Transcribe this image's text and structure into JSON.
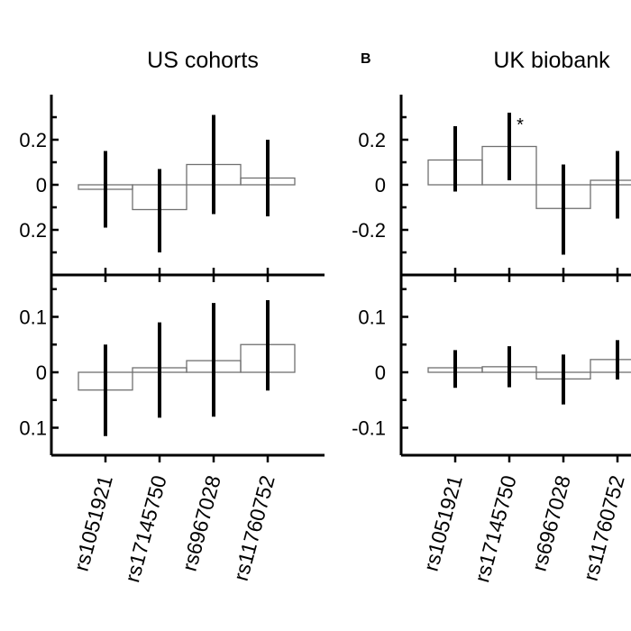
{
  "chart_data": [
    {
      "type": "bar",
      "title": "US cohorts",
      "panel_label": "",
      "categories": [
        "rs1051921",
        "rs17145750",
        "rs6967028",
        "rs11760752"
      ],
      "subplots": [
        {
          "ylim": [
            -0.4,
            0.4
          ],
          "ytick_labels": [
            "0.2",
            "0",
            "0.2"
          ],
          "values": [
            -0.02,
            -0.11,
            0.09,
            0.03
          ],
          "ci_low": [
            -0.19,
            -0.3,
            -0.13,
            -0.14
          ],
          "ci_high": [
            0.15,
            0.07,
            0.31,
            0.2
          ],
          "significance": [
            "",
            "",
            "",
            ""
          ]
        },
        {
          "ylim": [
            -0.15,
            0.165
          ],
          "ytick_labels": [
            "0.1",
            "0",
            "0.1"
          ],
          "values": [
            -0.032,
            0.005,
            0.021,
            0.05
          ],
          "ci_low": [
            -0.115,
            -0.082,
            -0.08,
            -0.033
          ],
          "ci_high": [
            0.05,
            0.09,
            0.125,
            0.13
          ],
          "significance": [
            "",
            "",
            "",
            ""
          ]
        }
      ]
    },
    {
      "type": "bar",
      "title": "UK biobank",
      "panel_label": "B",
      "categories": [
        "rs1051921",
        "rs17145750",
        "rs6967028",
        "rs11760752"
      ],
      "category_labels": [
        "rs1051921",
        "rs17145750",
        "rs6967028",
        "rs11760752"
      ],
      "subplots": [
        {
          "ylim": [
            -0.4,
            0.4
          ],
          "ytick_labels": [
            "0.2",
            "0",
            "-0.2"
          ],
          "values": [
            0.11,
            0.17,
            -0.105,
            0.0
          ],
          "ci_low": [
            -0.03,
            0.02,
            -0.31,
            -0.15
          ],
          "ci_high": [
            0.26,
            0.32,
            0.09,
            0.15
          ],
          "significance": [
            "",
            "*",
            "",
            ""
          ]
        },
        {
          "ylim": [
            -0.15,
            0.165
          ],
          "ytick_labels": [
            "0.1",
            "0",
            "-0.1"
          ],
          "values": [
            0.006,
            0.01,
            -0.012,
            0.023
          ],
          "ci_low": [
            -0.028,
            -0.027,
            -0.058,
            -0.013
          ],
          "ci_high": [
            0.04,
            0.047,
            0.032,
            0.058
          ],
          "significance": [
            "",
            "",
            "",
            ""
          ]
        }
      ]
    }
  ]
}
